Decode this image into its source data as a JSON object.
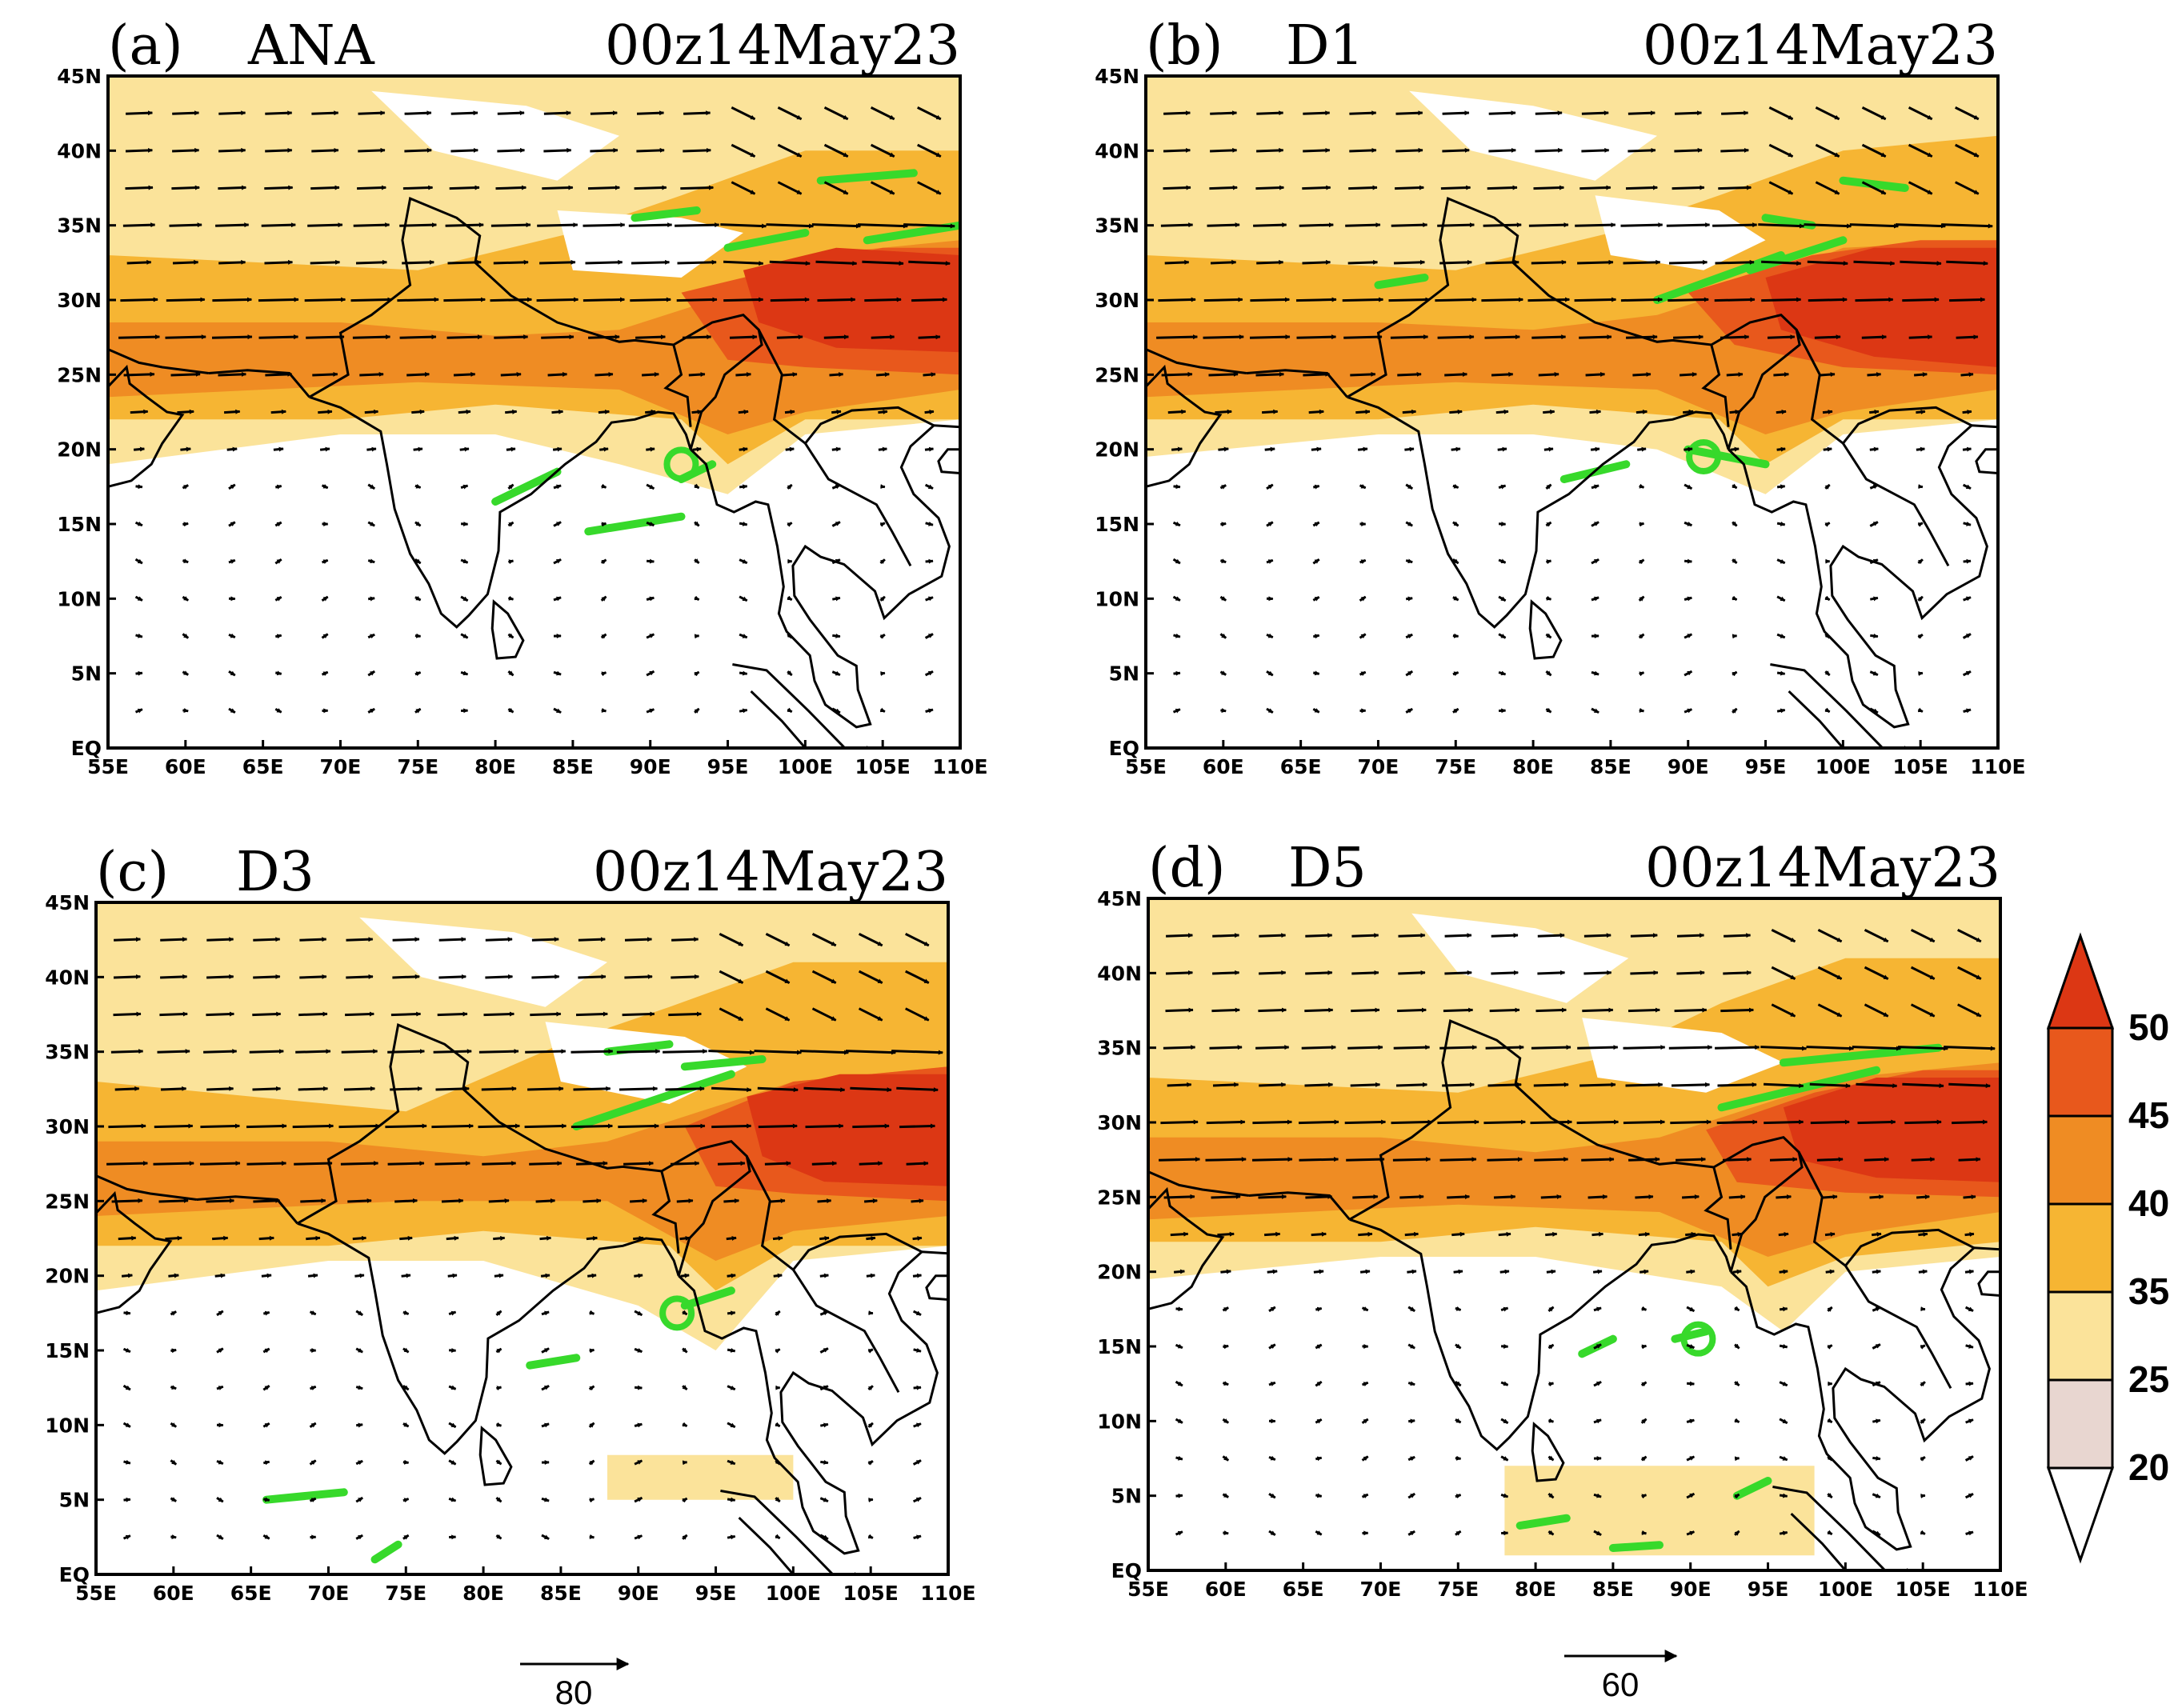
{
  "figure": {
    "panels": [
      {
        "letter": "(a)",
        "label": "ANA",
        "time": "00z14May23"
      },
      {
        "letter": "(b)",
        "label": "D1",
        "time": "00z14May23"
      },
      {
        "letter": "(c)",
        "label": "D3",
        "time": "00z14May23"
      },
      {
        "letter": "(d)",
        "label": "D5",
        "time": "00z14May23"
      }
    ],
    "lat_ticks": [
      "45N",
      "40N",
      "35N",
      "30N",
      "25N",
      "20N",
      "15N",
      "10N",
      "5N",
      "EQ"
    ],
    "lon_ticks": [
      "55E",
      "60E",
      "65E",
      "70E",
      "75E",
      "80E",
      "85E",
      "90E",
      "95E",
      "100E",
      "105E",
      "110E"
    ],
    "colorbar": {
      "levels": [
        "20",
        "25",
        "35",
        "40",
        "45",
        "50"
      ],
      "colors": [
        "#ffffff",
        "#e8d6d0",
        "#fbe39a",
        "#f6b533",
        "#ef8c23",
        "#e8581c",
        "#dc3714"
      ]
    },
    "reference_vectors": [
      {
        "value": "80"
      },
      {
        "value": "60"
      }
    ],
    "overlay_color": "#37d92b"
  }
}
